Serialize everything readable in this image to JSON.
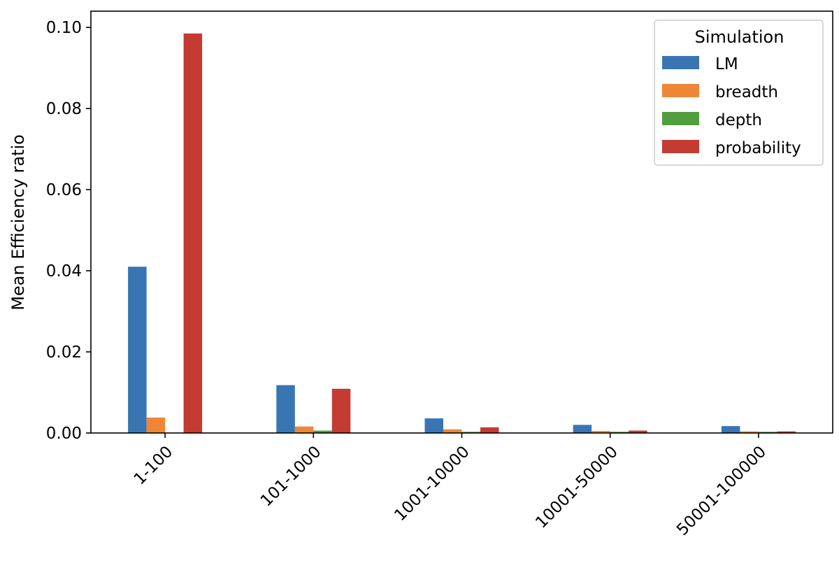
{
  "chart_data": {
    "type": "bar",
    "title": "",
    "xlabel": "",
    "ylabel": "Mean Efficiency ratio",
    "ylim": [
      0,
      0.104
    ],
    "yticks": [
      "0.00",
      "0.02",
      "0.04",
      "0.06",
      "0.08",
      "0.10"
    ],
    "ytick_values": [
      0,
      0.02,
      0.04,
      0.06,
      0.08,
      0.1
    ],
    "categories": [
      "1-100",
      "101-1000",
      "1001-10000",
      "10001-50000",
      "50001-100000"
    ],
    "series": [
      {
        "name": "LM",
        "color": "#3a75b3",
        "values": [
          0.041,
          0.0118,
          0.0036,
          0.002,
          0.0017
        ]
      },
      {
        "name": "breadth",
        "color": "#ef8636",
        "values": [
          0.0038,
          0.0016,
          0.0009,
          0.0005,
          0.0004
        ]
      },
      {
        "name": "depth",
        "color": "#519e3e",
        "values": [
          0.0,
          0.0006,
          0.0003,
          0.0003,
          0.0003
        ]
      },
      {
        "name": "probability",
        "color": "#c43b31",
        "values": [
          0.0985,
          0.0109,
          0.0014,
          0.0006,
          0.0004
        ]
      }
    ],
    "legend": {
      "title": "Simulation",
      "placement": "top-right"
    },
    "grid": false
  }
}
